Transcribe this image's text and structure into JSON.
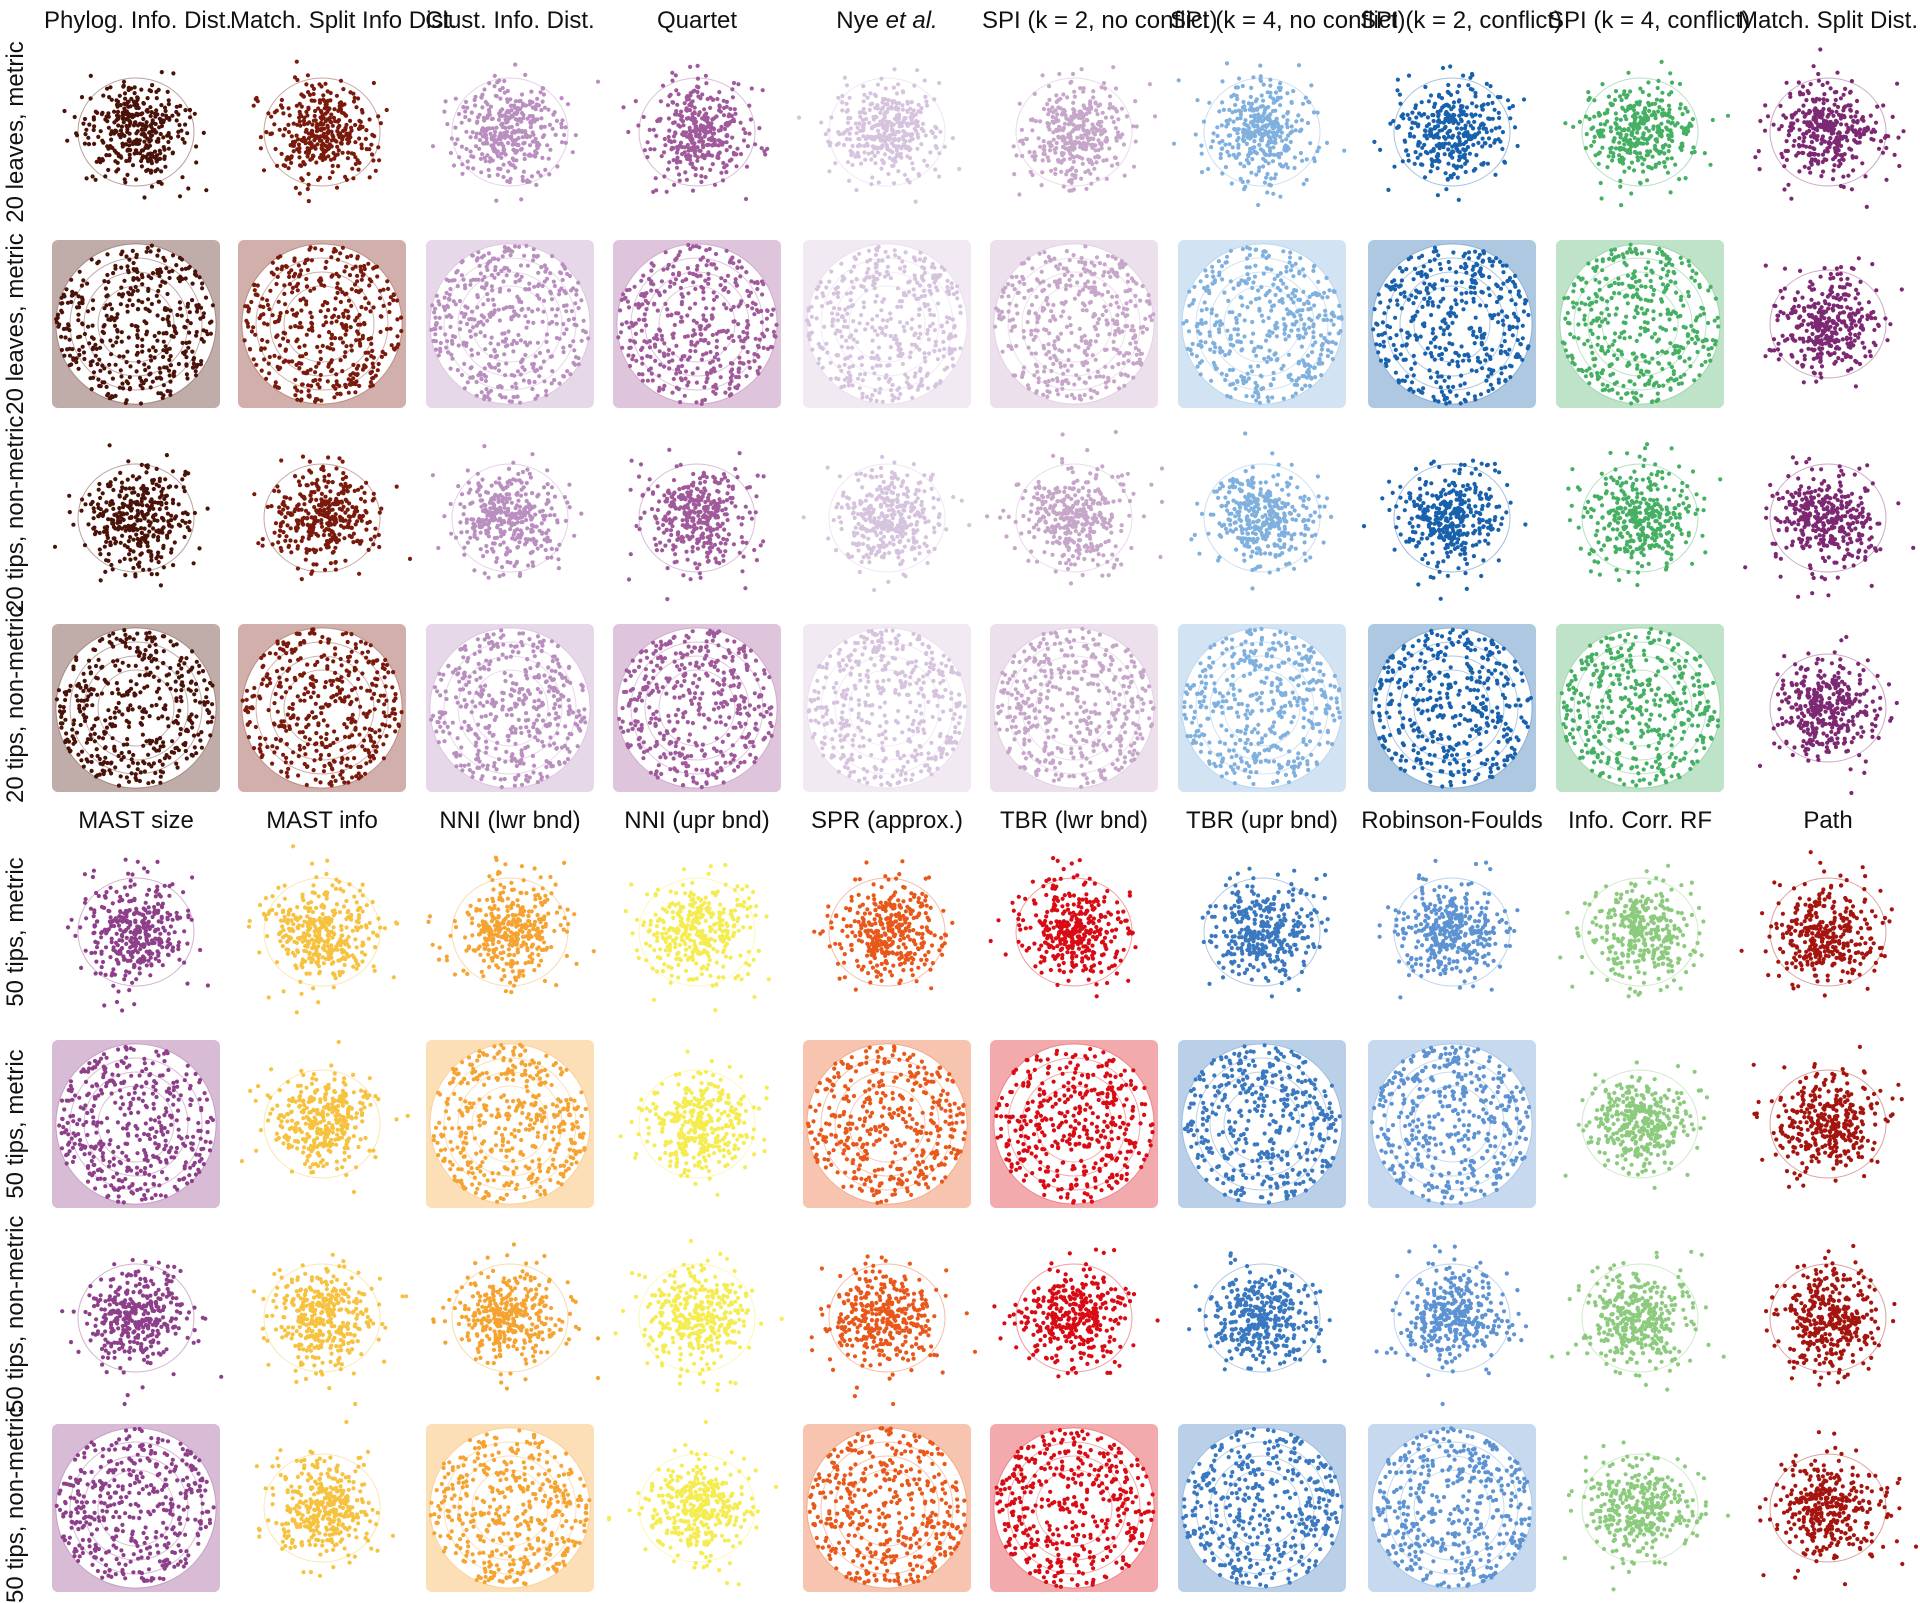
{
  "chart_data": [
    {
      "type": "scatter",
      "block": "top",
      "column_titles": [
        "Phylog. Info. Dist.",
        "Match. Split Info Dist.",
        "Clust. Info. Dist.",
        "Quartet",
        "Nye et al.",
        "SPI (k = 2, no conflict)",
        "SPI (k = 4, no conflict)",
        "SPI (k = 2, conflict)",
        "SPI (k = 4, conflict)",
        "Match. Split Dist."
      ],
      "title_emphasis": "et al.",
      "row_labels": [
        "20 leaves, metric",
        "20 leaves, metric",
        "20 tips, non-metric",
        "20 tips, non-metric"
      ],
      "series": [
        {
          "name": "Phylog. Info. Dist.",
          "color": "#4a1208"
        },
        {
          "name": "Match. Split Info Dist.",
          "color": "#7a1a0c"
        },
        {
          "name": "Clust. Info. Dist.",
          "color": "#b98fbf"
        },
        {
          "name": "Quartet",
          "color": "#a05a9b"
        },
        {
          "name": "Nye et al.",
          "color": "#d6c3de"
        },
        {
          "name": "SPI (k = 2, no conflict)",
          "color": "#c6a6c9"
        },
        {
          "name": "SPI (k = 4, no conflict)",
          "color": "#7fb0de"
        },
        {
          "name": "SPI (k = 2, conflict)",
          "color": "#1861ad"
        },
        {
          "name": "SPI (k = 4, conflict)",
          "color": "#45b063"
        },
        {
          "name": "Match. Split Dist.",
          "color": "#7d2872"
        }
      ],
      "panel_patterns": [
        [
          "blob",
          "blob",
          "blob",
          "blob",
          "blob",
          "blob",
          "blob",
          "blob",
          "blob",
          "blob"
        ],
        [
          "disc",
          "disc",
          "disc",
          "disc",
          "disc",
          "disc",
          "disc",
          "disc",
          "disc",
          "blob"
        ],
        [
          "blob",
          "blob",
          "blob",
          "blob",
          "blob",
          "blob",
          "blob",
          "blob",
          "blob",
          "blob"
        ],
        [
          "disc",
          "disc",
          "disc",
          "disc",
          "disc",
          "disc",
          "disc",
          "disc",
          "disc",
          "blob"
        ]
      ]
    },
    {
      "type": "scatter",
      "block": "bottom",
      "column_titles": [
        "MAST size",
        "MAST info",
        "NNI (lwr bnd)",
        "NNI (upr bnd)",
        "SPR (approx.)",
        "TBR (lwr bnd)",
        "TBR (upr bnd)",
        "Robinson-Foulds",
        "Info. Corr. RF",
        "Path"
      ],
      "row_labels": [
        "50 tips, metric",
        "50 tips, metric",
        "50 tips, non-metric",
        "50 tips, non-metric"
      ],
      "series": [
        {
          "name": "MAST size",
          "color": "#8e3f8a"
        },
        {
          "name": "MAST info",
          "color": "#f6c23f"
        },
        {
          "name": "NNI (lwr bnd)",
          "color": "#f5a331"
        },
        {
          "name": "NNI (upr bnd)",
          "color": "#f5ec52"
        },
        {
          "name": "SPR (approx.)",
          "color": "#e8581a"
        },
        {
          "name": "TBR (lwr bnd)",
          "color": "#d90b14"
        },
        {
          "name": "TBR (upr bnd)",
          "color": "#3a78c0"
        },
        {
          "name": "Robinson-Foulds",
          "color": "#5d93d2"
        },
        {
          "name": "Info. Corr. RF",
          "color": "#8ccb7e"
        },
        {
          "name": "Path",
          "color": "#a5150f"
        }
      ],
      "panel_patterns": [
        [
          "blob",
          "blob",
          "blob",
          "blob",
          "blob",
          "blob",
          "blob",
          "blob",
          "blob",
          "blob"
        ],
        [
          "disc",
          "blob",
          "disc",
          "blob",
          "disc",
          "disc",
          "disc",
          "disc",
          "blob",
          "blob"
        ],
        [
          "blob",
          "blob",
          "blob",
          "blob",
          "blob",
          "blob",
          "blob",
          "blob",
          "blob",
          "blob"
        ],
        [
          "disc",
          "blob",
          "disc",
          "blob",
          "disc",
          "disc",
          "disc",
          "disc",
          "blob",
          "blob"
        ]
      ]
    }
  ]
}
